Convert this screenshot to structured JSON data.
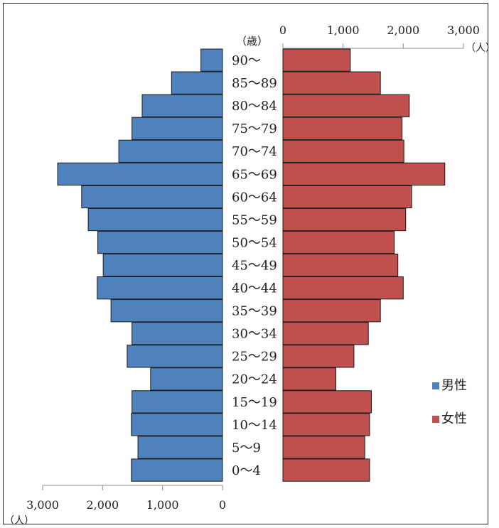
{
  "chart_data": {
    "type": "bar",
    "orientation": "horizontal",
    "layout": "population-pyramid",
    "age_axis_label": "（歳）",
    "categories": [
      "90〜",
      "85〜89",
      "80〜84",
      "75〜79",
      "70〜74",
      "65〜69",
      "60〜64",
      "55〜59",
      "50〜54",
      "45〜49",
      "40〜44",
      "35〜39",
      "30〜34",
      "25〜29",
      "20〜24",
      "15〜19",
      "10〜14",
      "5〜9",
      "0〜4"
    ],
    "series": [
      {
        "name": "男性",
        "side": "left",
        "color": "#4f81bd",
        "values": [
          360,
          850,
          1340,
          1510,
          1730,
          2750,
          2350,
          2240,
          2080,
          1990,
          2090,
          1860,
          1510,
          1590,
          1200,
          1510,
          1520,
          1410,
          1520
        ]
      },
      {
        "name": "女性",
        "side": "right",
        "color": "#c0504d",
        "values": [
          1120,
          1620,
          2100,
          1980,
          2010,
          2690,
          2140,
          2040,
          1850,
          1910,
          2000,
          1620,
          1420,
          1180,
          880,
          1470,
          1440,
          1360,
          1440
        ]
      }
    ],
    "left_axis": {
      "ticks": [
        3000,
        2000,
        1000,
        0
      ],
      "tick_labels": [
        "3,000",
        "2,000",
        "1,000",
        "0"
      ],
      "unit": "（人）",
      "range": [
        0,
        3000
      ],
      "placement": "bottom"
    },
    "right_axis": {
      "ticks": [
        0,
        1000,
        2000,
        3000
      ],
      "tick_labels": [
        "0",
        "1,000",
        "2,000",
        "3,000"
      ],
      "unit": "（人）",
      "range": [
        0,
        3000
      ],
      "placement": "top"
    },
    "grid": false,
    "legend": {
      "position": "right",
      "entries": [
        {
          "label": "男性",
          "color": "#4f81bd"
        },
        {
          "label": "女性",
          "color": "#c0504d"
        }
      ]
    }
  }
}
